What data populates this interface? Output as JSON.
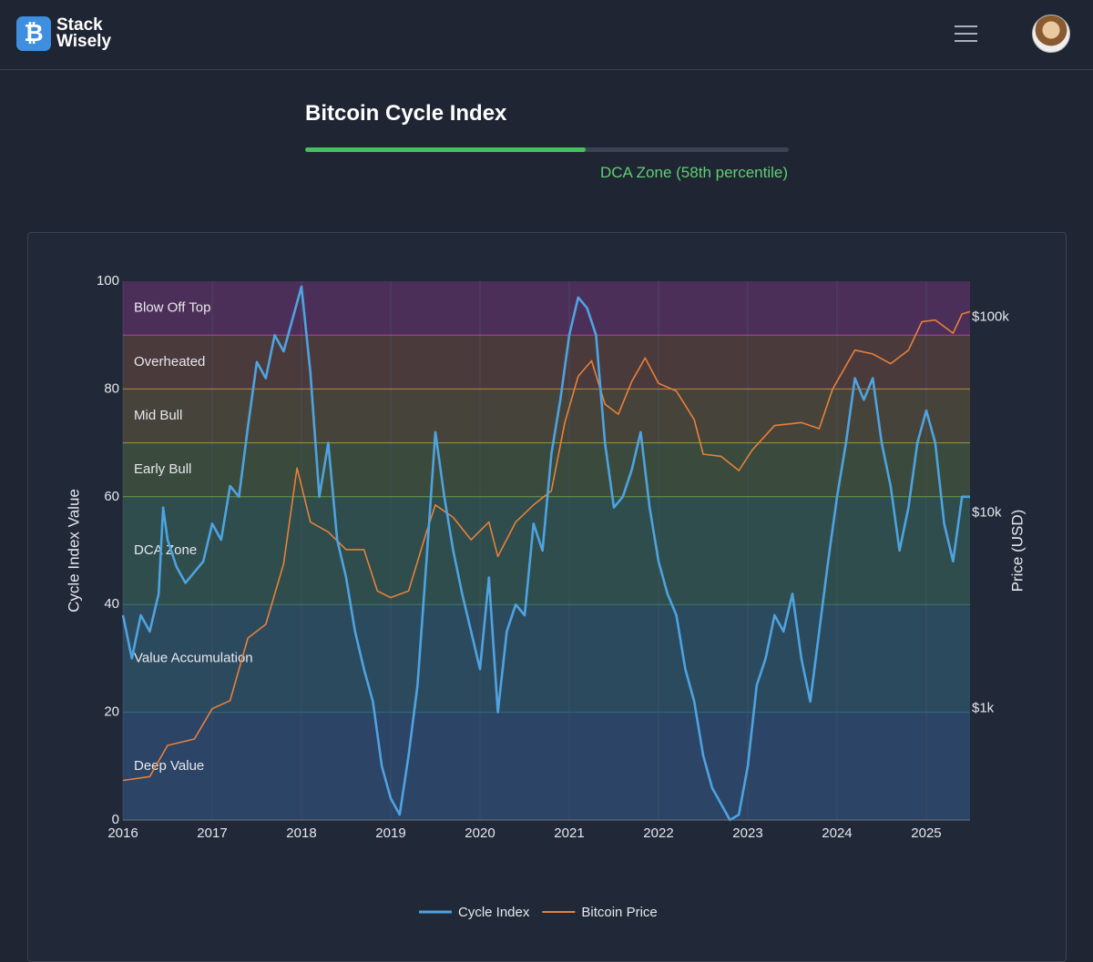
{
  "header": {
    "brand_line1": "Stack",
    "brand_line2": "Wisely"
  },
  "indicator": {
    "title": "Bitcoin Cycle Index",
    "percentile": 58,
    "status": "DCA Zone (58th percentile)"
  },
  "chart_data": {
    "type": "line",
    "y_label": "Cycle Index Value",
    "y2_label": "Price (USD)",
    "xlim": [
      2016,
      2025.49
    ],
    "xticks": [
      2016,
      2017,
      2018,
      2019,
      2020,
      2021,
      2022,
      2023,
      2024,
      2025
    ],
    "ylim": [
      0,
      100
    ],
    "yticks": [
      0,
      20,
      40,
      60,
      80,
      100
    ],
    "y2lim": [
      270,
      153000
    ],
    "y2scale": "log",
    "y2ticks": [
      {
        "value": 1000,
        "label": "$1k"
      },
      {
        "value": 10000,
        "label": "$10k"
      },
      {
        "value": 100000,
        "label": "$100k"
      }
    ],
    "grid": true,
    "legend": "bottom",
    "zones": [
      {
        "name": "Deep Value",
        "from": 0,
        "to": 20,
        "color": "#2c4466",
        "line": "#2f6b7a"
      },
      {
        "name": "Value Accumulation",
        "from": 20,
        "to": 40,
        "color": "#2c4a5e",
        "line": "#3e7a62"
      },
      {
        "name": "DCA Zone",
        "from": 40,
        "to": 60,
        "color": "#2e4d4c",
        "line": "#6a9a4a"
      },
      {
        "name": "Early Bull",
        "from": 60,
        "to": 70,
        "color": "#3a4a3c",
        "line": "#9a9a3a"
      },
      {
        "name": "Mid Bull",
        "from": 70,
        "to": 80,
        "color": "#46443a",
        "line": "#b88a3a"
      },
      {
        "name": "Overheated",
        "from": 80,
        "to": 90,
        "color": "#4a3a3c",
        "line": "#b0449a"
      },
      {
        "name": "Blow Off Top",
        "from": 90,
        "to": 100,
        "color": "#4c2f58",
        "line": "#7a4a8a"
      }
    ],
    "series": [
      {
        "name": "Cycle Index",
        "color": "#4ea3e0",
        "axis": "y",
        "x": [
          2016.0,
          2016.1,
          2016.2,
          2016.3,
          2016.4,
          2016.45,
          2016.5,
          2016.6,
          2016.7,
          2016.8,
          2016.9,
          2017.0,
          2017.1,
          2017.2,
          2017.3,
          2017.4,
          2017.5,
          2017.6,
          2017.7,
          2017.8,
          2017.9,
          2018.0,
          2018.1,
          2018.2,
          2018.3,
          2018.4,
          2018.5,
          2018.6,
          2018.7,
          2018.8,
          2018.9,
          2019.0,
          2019.1,
          2019.2,
          2019.3,
          2019.4,
          2019.5,
          2019.6,
          2019.7,
          2019.8,
          2019.9,
          2020.0,
          2020.1,
          2020.2,
          2020.3,
          2020.4,
          2020.5,
          2020.6,
          2020.7,
          2020.8,
          2020.9,
          2021.0,
          2021.1,
          2021.2,
          2021.3,
          2021.4,
          2021.5,
          2021.6,
          2021.7,
          2021.8,
          2021.9,
          2022.0,
          2022.1,
          2022.2,
          2022.3,
          2022.4,
          2022.5,
          2022.6,
          2022.7,
          2022.8,
          2022.9,
          2023.0,
          2023.1,
          2023.2,
          2023.3,
          2023.4,
          2023.5,
          2023.6,
          2023.7,
          2023.8,
          2023.9,
          2024.0,
          2024.1,
          2024.2,
          2024.3,
          2024.4,
          2024.5,
          2024.6,
          2024.7,
          2024.8,
          2024.9,
          2025.0,
          2025.1,
          2025.2,
          2025.3,
          2025.4,
          2025.49
        ],
        "values": [
          38,
          30,
          38,
          35,
          42,
          58,
          52,
          47,
          44,
          46,
          48,
          55,
          52,
          62,
          60,
          73,
          85,
          82,
          90,
          87,
          93,
          99,
          83,
          60,
          70,
          52,
          45,
          35,
          28,
          22,
          10,
          4,
          1,
          12,
          25,
          48,
          72,
          60,
          50,
          42,
          35,
          28,
          45,
          20,
          35,
          40,
          38,
          55,
          50,
          68,
          78,
          90,
          97,
          95,
          90,
          70,
          58,
          60,
          65,
          72,
          58,
          48,
          42,
          38,
          28,
          22,
          12,
          6,
          3,
          0,
          1,
          10,
          25,
          30,
          38,
          35,
          42,
          30,
          22,
          35,
          48,
          60,
          70,
          82,
          78,
          82,
          70,
          62,
          50,
          58,
          70,
          76,
          70,
          55,
          48,
          60,
          60
        ]
      },
      {
        "name": "Bitcoin Price",
        "color": "#e8803a",
        "axis": "y2",
        "x": [
          2016.0,
          2016.3,
          2016.5,
          2016.8,
          2017.0,
          2017.2,
          2017.4,
          2017.6,
          2017.8,
          2017.95,
          2018.1,
          2018.3,
          2018.5,
          2018.7,
          2018.85,
          2019.0,
          2019.2,
          2019.4,
          2019.5,
          2019.7,
          2019.9,
          2020.1,
          2020.2,
          2020.4,
          2020.6,
          2020.8,
          2020.95,
          2021.1,
          2021.25,
          2021.4,
          2021.55,
          2021.7,
          2021.85,
          2022.0,
          2022.2,
          2022.4,
          2022.5,
          2022.7,
          2022.9,
          2023.05,
          2023.3,
          2023.6,
          2023.8,
          2023.95,
          2024.2,
          2024.4,
          2024.6,
          2024.8,
          2024.95,
          2025.1,
          2025.3,
          2025.4,
          2025.49
        ],
        "values": [
          430,
          450,
          650,
          700,
          1000,
          1100,
          2300,
          2700,
          5500,
          17000,
          9000,
          8000,
          6500,
          6500,
          4000,
          3700,
          4000,
          8000,
          11000,
          9500,
          7300,
          9000,
          6000,
          9000,
          11000,
          13000,
          29000,
          50000,
          60000,
          36000,
          32000,
          47000,
          62000,
          46000,
          42000,
          30000,
          20000,
          19500,
          16500,
          21000,
          28000,
          29000,
          27000,
          43000,
          68000,
          65000,
          58000,
          68000,
          95000,
          97000,
          83000,
          104000,
          107000
        ]
      }
    ]
  }
}
